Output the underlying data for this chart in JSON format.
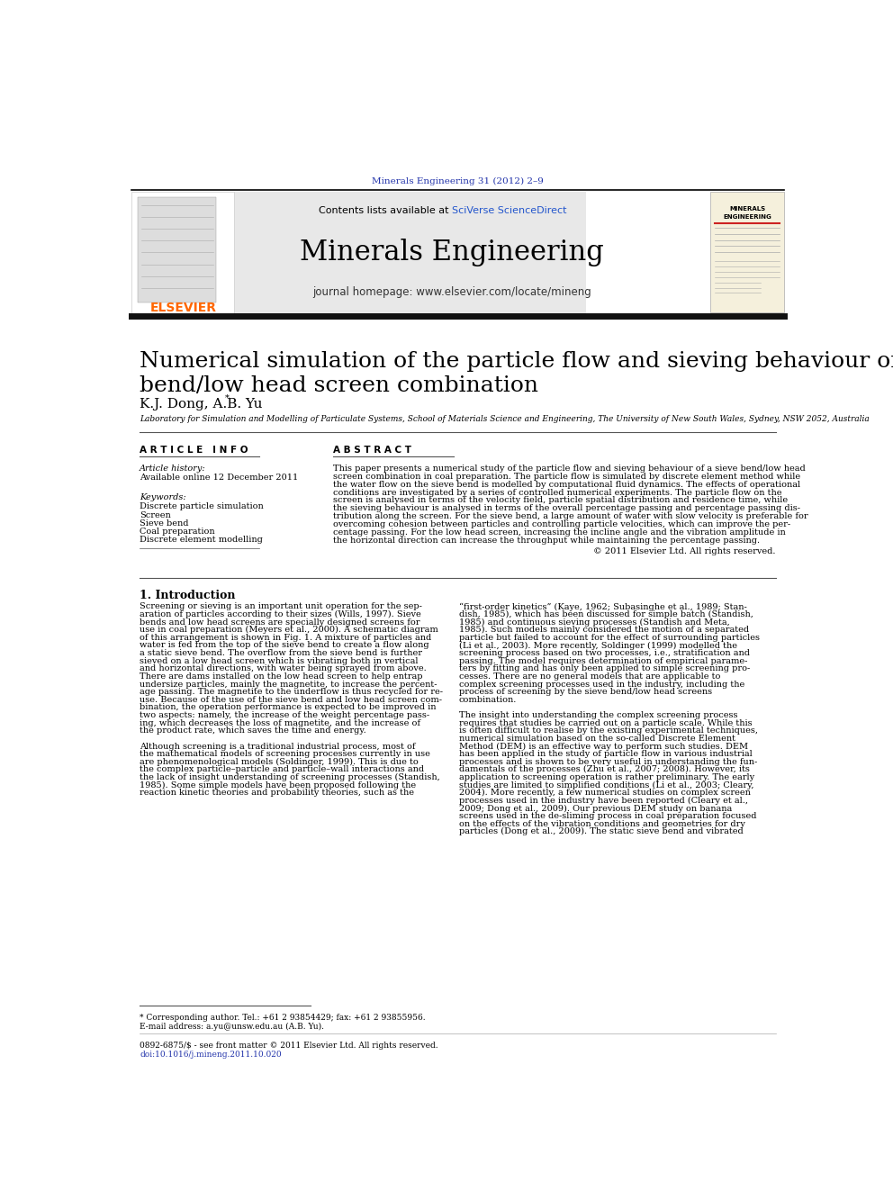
{
  "page_width": 9.92,
  "page_height": 13.23,
  "bg_color": "#ffffff",
  "top_journal_ref": "Minerals Engineering 31 (2012) 2–9",
  "top_journal_color": "#2233aa",
  "header_bg": "#e8e8e8",
  "header_contents_text": "Contents lists available at ",
  "header_sciverse": "SciVerse ScienceDirect",
  "header_sciverse_color": "#2255cc",
  "header_journal_title": "Minerals Engineering",
  "header_homepage": "journal homepage: www.elsevier.com/locate/mineng",
  "article_title": "Numerical simulation of the particle flow and sieving behaviour on sieve\nbend/low head screen combination",
  "authors": "K.J. Dong, A.B. Yu",
  "author_star": "*",
  "affiliation": "Laboratory for Simulation and Modelling of Particulate Systems, School of Materials Science and Engineering, The University of New South Wales, Sydney, NSW 2052, Australia",
  "article_info_label": "A R T I C L E   I N F O",
  "abstract_label": "A B S T R A C T",
  "article_history_label": "Article history:",
  "article_history_date": "Available online 12 December 2011",
  "keywords_label": "Keywords:",
  "keywords": [
    "Discrete particle simulation",
    "Screen",
    "Sieve bend",
    "Coal preparation",
    "Discrete element modelling"
  ],
  "copyright_text": "© 2011 Elsevier Ltd. All rights reserved.",
  "intro_heading": "1. Introduction",
  "footnote_star": "* Corresponding author. Tel.: +61 2 93854429; fax: +61 2 93855956.",
  "footnote_email": "E-mail address: a.yu@unsw.edu.au (A.B. Yu).",
  "footnote_issn": "0892-6875/$ - see front matter © 2011 Elsevier Ltd. All rights reserved.",
  "footnote_doi": "doi:10.1016/j.mineng.2011.10.020",
  "elsevier_color": "#ff6600",
  "cover_bg": "#f5f0dc",
  "header_line_color": "#111111",
  "sep_line_color": "#555555"
}
